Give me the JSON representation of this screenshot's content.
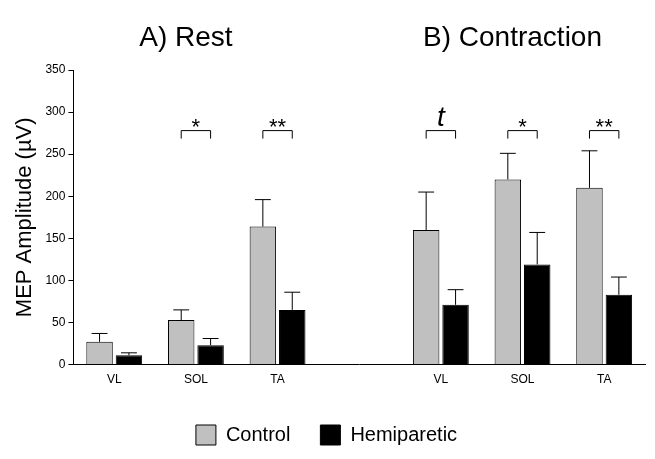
{
  "chart_data": {
    "type": "bar",
    "panel_titles": [
      "A) Rest",
      "B) Contraction"
    ],
    "y_label": "MEP Amplitude (µV)",
    "categories": [
      "VL",
      "SOL",
      "TA",
      null,
      "VL",
      "SOL",
      "TA"
    ],
    "series": [
      {
        "name": "Control",
        "color": "#c0c0c0",
        "values": [
          27,
          53,
          164,
          null,
          160,
          220,
          210
        ],
        "errors": [
          10,
          12,
          32,
          null,
          45,
          31,
          44
        ]
      },
      {
        "name": "Hemiparetic",
        "color": "#000000",
        "values": [
          11,
          23,
          65,
          null,
          71,
          119,
          83
        ],
        "errors": [
          3,
          8,
          21,
          null,
          18,
          38,
          21
        ]
      }
    ],
    "ylim": [
      0,
      350
    ],
    "yticks": [
      0,
      50,
      100,
      150,
      200,
      250,
      300,
      350
    ],
    "grid": false,
    "legend": "bottom",
    "annotations": [
      {
        "index": 1,
        "text": "*",
        "y": 278
      },
      {
        "index": 2,
        "text": "**",
        "y": 278
      },
      {
        "index": 4,
        "text": "t",
        "y": 278
      },
      {
        "index": 5,
        "text": "*",
        "y": 278
      },
      {
        "index": 6,
        "text": "**",
        "y": 278
      }
    ]
  }
}
